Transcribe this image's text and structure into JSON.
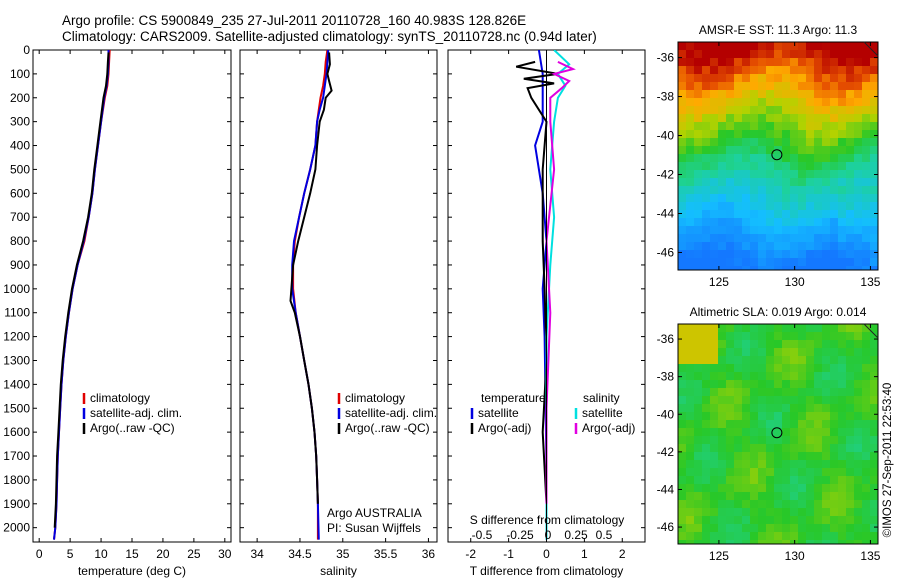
{
  "header": {
    "line1": "Argo profile: CS 5900849_235 27-Jul-2011 20110728_160 40.983S 128.826E",
    "line2": "Climatology: CARS2009. Satellite-adjusted climatology: synTS_20110728.nc (0.94d later)"
  },
  "colors": {
    "climatology": "#e00000",
    "satellite": "#0000e0",
    "argo": "#000000",
    "sal_satellite": "#00e0e0",
    "sal_argo": "#e000e0"
  },
  "chart_data": [
    {
      "type": "line",
      "id": "temperature",
      "xlabel": "temperature (deg C)",
      "xlim": [
        -1,
        31
      ],
      "xticks": [
        0,
        5,
        10,
        15,
        20,
        25,
        30
      ],
      "ylim": [
        2060,
        0
      ],
      "yticks": [
        0,
        100,
        200,
        300,
        400,
        500,
        600,
        700,
        800,
        900,
        1000,
        1100,
        1200,
        1300,
        1400,
        1500,
        1600,
        1700,
        1800,
        1900,
        2000
      ],
      "legend": [
        "climatology",
        "satellite-adj. clim.",
        "Argo(..raw -QC)"
      ],
      "series": [
        {
          "key": "climatology",
          "x": [
            11.4,
            11.3,
            11.2,
            11.0,
            10.6,
            10.0,
            9.5,
            9.0,
            8.6,
            8.0,
            7.3,
            6.2,
            5.4,
            4.8,
            4.3,
            3.9,
            3.6,
            3.4,
            3.2,
            3.0,
            2.9,
            2.8,
            2.6,
            2.4
          ],
          "y": [
            0,
            50,
            100,
            150,
            200,
            300,
            400,
            500,
            600,
            700,
            800,
            900,
            1000,
            1100,
            1200,
            1300,
            1400,
            1500,
            1600,
            1700,
            1800,
            1900,
            2000,
            2050
          ]
        },
        {
          "key": "satellite",
          "x": [
            11.2,
            11.2,
            11.1,
            10.9,
            10.5,
            10.0,
            9.5,
            9.0,
            8.6,
            8.0,
            7.2,
            6.2,
            5.4,
            4.8,
            4.3,
            3.9,
            3.6,
            3.4,
            3.2,
            3.0,
            2.9,
            2.8,
            2.6,
            2.4
          ],
          "y": [
            0,
            50,
            100,
            150,
            200,
            300,
            400,
            500,
            600,
            700,
            800,
            900,
            1000,
            1100,
            1200,
            1300,
            1400,
            1500,
            1600,
            1700,
            1800,
            1900,
            2000,
            2050
          ]
        },
        {
          "key": "argo",
          "x": [
            11.2,
            11.1,
            11.0,
            10.8,
            10.4,
            9.9,
            9.4,
            8.9,
            8.5,
            7.9,
            7.1,
            6.1,
            5.3,
            4.7,
            4.2,
            3.8,
            3.5,
            3.3,
            3.1,
            2.9,
            2.8,
            2.7,
            2.5
          ],
          "y": [
            10,
            50,
            100,
            150,
            200,
            300,
            400,
            500,
            600,
            700,
            800,
            900,
            1000,
            1100,
            1200,
            1300,
            1400,
            1500,
            1600,
            1700,
            1800,
            1900,
            2000
          ]
        }
      ]
    },
    {
      "type": "line",
      "id": "salinity",
      "xlabel": "salinity",
      "xlim": [
        33.8,
        36.1
      ],
      "xticks": [
        34,
        34.5,
        35,
        35.5,
        36
      ],
      "ylim": [
        2060,
        0
      ],
      "legend": [
        "climatology",
        "satellite-adj. clim.",
        "Argo(..raw -QC)"
      ],
      "annotation": [
        "Argo AUSTRALIA",
        "PI: Susan Wijffels"
      ],
      "series": [
        {
          "key": "climatology",
          "x": [
            34.82,
            34.8,
            34.79,
            34.77,
            34.74,
            34.72,
            34.7,
            34.68,
            34.62,
            34.55,
            34.49,
            34.44,
            34.42,
            34.42,
            34.45,
            34.5,
            34.55,
            34.6,
            34.64,
            34.67,
            34.69,
            34.7,
            34.71,
            34.71
          ],
          "y": [
            0,
            50,
            100,
            150,
            200,
            250,
            300,
            400,
            500,
            600,
            700,
            800,
            900,
            1000,
            1100,
            1200,
            1300,
            1400,
            1500,
            1600,
            1700,
            1800,
            1900,
            2050
          ]
        },
        {
          "key": "satellite",
          "x": [
            34.83,
            34.82,
            34.81,
            34.79,
            34.77,
            34.73,
            34.7,
            34.68,
            34.62,
            34.55,
            34.49,
            34.43,
            34.41,
            34.41,
            34.45,
            34.5,
            34.55,
            34.6,
            34.64,
            34.67,
            34.69,
            34.7,
            34.71,
            34.72
          ],
          "y": [
            0,
            50,
            100,
            150,
            200,
            250,
            300,
            400,
            500,
            600,
            700,
            800,
            900,
            1000,
            1100,
            1200,
            1300,
            1400,
            1500,
            1600,
            1700,
            1800,
            1900,
            2050
          ]
        },
        {
          "key": "argo",
          "x": [
            34.84,
            34.85,
            34.82,
            34.84,
            34.87,
            34.8,
            34.78,
            34.73,
            34.7,
            34.68,
            34.62,
            34.55,
            34.48,
            34.42,
            34.4,
            34.39,
            34.44,
            34.5,
            34.55,
            34.6,
            34.64,
            34.67,
            34.69,
            34.7,
            34.71
          ],
          "y": [
            10,
            60,
            100,
            130,
            170,
            200,
            250,
            300,
            400,
            500,
            600,
            700,
            800,
            900,
            1000,
            1050,
            1100,
            1200,
            1300,
            1400,
            1500,
            1600,
            1700,
            1800,
            1900
          ]
        }
      ]
    },
    {
      "type": "line",
      "id": "difference",
      "xlabel": "T difference from climatology",
      "xlabel_top": "S difference from climatology",
      "xlim": [
        -2.6,
        2.6
      ],
      "xticks": [
        -2,
        -1,
        0,
        1,
        2
      ],
      "xticks_top": [
        "-0.5",
        "-0.25",
        "0",
        "0.25",
        "0.5"
      ],
      "legend_left_title": "temperature",
      "legend_left": [
        "satellite",
        "Argo(-adj)"
      ],
      "legend_right_title": "salinity",
      "legend_right": [
        "satellite",
        "Argo(-adj)"
      ],
      "series": [
        {
          "name": "satellite",
          "key": "satellite",
          "x": [
            -0.2,
            -0.1,
            -0.1,
            -0.1,
            -0.3,
            -0.1,
            0.0,
            -0.1,
            -0.05,
            -0.02,
            0.0,
            0.0
          ],
          "y": [
            0,
            100,
            200,
            300,
            400,
            600,
            800,
            1000,
            1200,
            1500,
            1800,
            2050
          ]
        },
        {
          "name": "Argo(-adj)",
          "key": "argo",
          "x": [
            -0.3,
            -0.8,
            0.3,
            -0.6,
            0.2,
            -0.5,
            -0.4,
            0.0,
            -0.1,
            -0.1,
            -0.05,
            0.0,
            -0.1,
            0.0
          ],
          "y": [
            50,
            70,
            100,
            120,
            140,
            160,
            200,
            300,
            500,
            800,
            1000,
            1300,
            1600,
            1900
          ]
        },
        {
          "name": "satellite",
          "key": "sal_satellite",
          "x": [
            0.2,
            0.6,
            0.3,
            0.5,
            0.3,
            0.2,
            0.1,
            0.2,
            0.1,
            0.0,
            0.0,
            0.0
          ],
          "y": [
            0,
            60,
            100,
            150,
            200,
            300,
            500,
            700,
            900,
            1200,
            1600,
            2050
          ]
        },
        {
          "name": "Argo(-adj)",
          "key": "sal_argo",
          "x": [
            0.3,
            0.7,
            0.2,
            0.6,
            0.4,
            0.1,
            0.1,
            0.2,
            0.0,
            0.1,
            0.0,
            0.0
          ],
          "y": [
            50,
            80,
            100,
            130,
            160,
            200,
            300,
            500,
            800,
            1100,
            1500,
            1900
          ]
        }
      ]
    },
    {
      "type": "heatmap",
      "id": "sst_map",
      "title": "AMSR-E SST: 11.3 Argo: 11.3",
      "xlim": [
        122.3,
        135.5
      ],
      "ylim": [
        -46.9,
        -35.2
      ],
      "xticks": [
        125,
        130,
        135
      ],
      "yticks": [
        -36,
        -38,
        -40,
        -42,
        -44,
        -46
      ],
      "marker": {
        "lon": 128.826,
        "lat": -40.983
      }
    },
    {
      "type": "heatmap",
      "id": "sla_map",
      "title": "Altimetric SLA: 0.019 Argo: 0.014",
      "xlim": [
        122.3,
        135.5
      ],
      "ylim": [
        -46.9,
        -35.2
      ],
      "xticks": [
        125,
        130,
        135
      ],
      "yticks": [
        -36,
        -38,
        -40,
        -42,
        -44,
        -46
      ],
      "marker": {
        "lon": 128.826,
        "lat": -40.983
      },
      "watermark": "©IMOS 27-Sep-2011 22:53:40"
    }
  ]
}
